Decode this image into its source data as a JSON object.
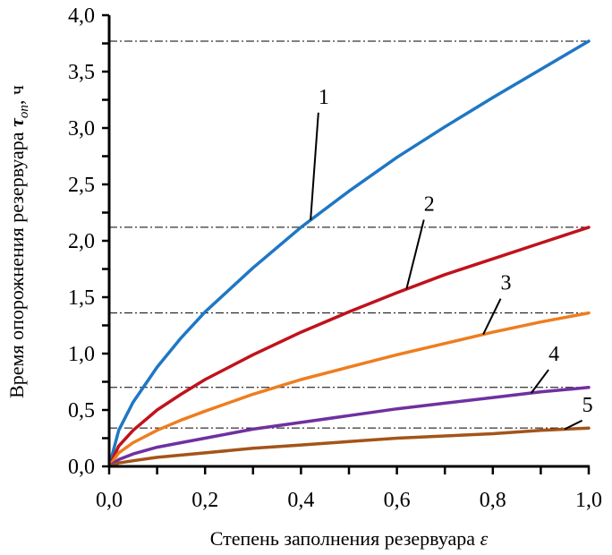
{
  "chart_data": {
    "type": "line",
    "title": "",
    "xlabel": "Степень заполнения резервуара",
    "xlabel_symbol": "ε",
    "ylabel": "Время опорожнения резервуара",
    "ylabel_symbol": "τ",
    "ylabel_subscript": "оп",
    "ylabel_unit": ", ч",
    "xlim": [
      0.0,
      1.0
    ],
    "ylim": [
      0.0,
      4.0
    ],
    "x_ticks": [
      "0,0",
      "0,2",
      "0,4",
      "0,6",
      "0,8",
      "1,0"
    ],
    "x_tick_values": [
      0.0,
      0.2,
      0.4,
      0.6,
      0.8,
      1.0
    ],
    "x_minor_step": 0.1,
    "y_ticks": [
      "0,0",
      "0,5",
      "1,0",
      "1,5",
      "2,0",
      "2,5",
      "3,0",
      "3,5",
      "4,0"
    ],
    "y_tick_values": [
      0.0,
      0.5,
      1.0,
      1.5,
      2.0,
      2.5,
      3.0,
      3.5,
      4.0
    ],
    "y_minor_step": 0.25,
    "grid": false,
    "legend": "inline-labels",
    "reference_lines": [
      3.77,
      2.12,
      1.36,
      0.7,
      0.34
    ],
    "series": [
      {
        "name": "1",
        "color": "#1f77c4",
        "x": [
          0,
          0.02,
          0.05,
          0.1,
          0.15,
          0.2,
          0.3,
          0.4,
          0.5,
          0.6,
          0.7,
          0.8,
          0.9,
          1.0
        ],
        "y": [
          0,
          0.32,
          0.57,
          0.88,
          1.14,
          1.37,
          1.76,
          2.12,
          2.44,
          2.74,
          3.01,
          3.27,
          3.52,
          3.77
        ],
        "label_x": 0.44,
        "label_y": 3.2
      },
      {
        "name": "2",
        "color": "#c0121d",
        "x": [
          0,
          0.02,
          0.05,
          0.1,
          0.15,
          0.2,
          0.3,
          0.4,
          0.5,
          0.6,
          0.7,
          0.8,
          0.9,
          1.0
        ],
        "y": [
          0,
          0.18,
          0.32,
          0.5,
          0.64,
          0.77,
          0.99,
          1.19,
          1.37,
          1.54,
          1.7,
          1.84,
          1.98,
          2.12
        ],
        "label_x": 0.66,
        "label_y": 2.25
      },
      {
        "name": "3",
        "color": "#ee7d1f",
        "x": [
          0,
          0.02,
          0.05,
          0.1,
          0.15,
          0.2,
          0.3,
          0.4,
          0.5,
          0.6,
          0.7,
          0.8,
          0.9,
          1.0
        ],
        "y": [
          0,
          0.12,
          0.21,
          0.32,
          0.41,
          0.49,
          0.64,
          0.77,
          0.88,
          0.99,
          1.09,
          1.19,
          1.28,
          1.36
        ],
        "label_x": 0.82,
        "label_y": 1.55
      },
      {
        "name": "4",
        "color": "#7030a0",
        "x": [
          0,
          0.02,
          0.05,
          0.1,
          0.15,
          0.2,
          0.3,
          0.4,
          0.5,
          0.6,
          0.7,
          0.8,
          0.9,
          1.0
        ],
        "y": [
          0,
          0.06,
          0.11,
          0.17,
          0.21,
          0.25,
          0.33,
          0.39,
          0.45,
          0.51,
          0.56,
          0.61,
          0.66,
          0.7
        ],
        "label_x": 0.92,
        "label_y": 0.92
      },
      {
        "name": "5",
        "color": "#a3541a",
        "x": [
          0,
          0.02,
          0.05,
          0.1,
          0.15,
          0.2,
          0.3,
          0.4,
          0.5,
          0.6,
          0.7,
          0.8,
          0.9,
          1.0
        ],
        "y": [
          0,
          0.03,
          0.05,
          0.08,
          0.1,
          0.12,
          0.16,
          0.19,
          0.22,
          0.25,
          0.27,
          0.29,
          0.32,
          0.34
        ],
        "label_x": 0.99,
        "label_y": 0.47
      }
    ]
  }
}
